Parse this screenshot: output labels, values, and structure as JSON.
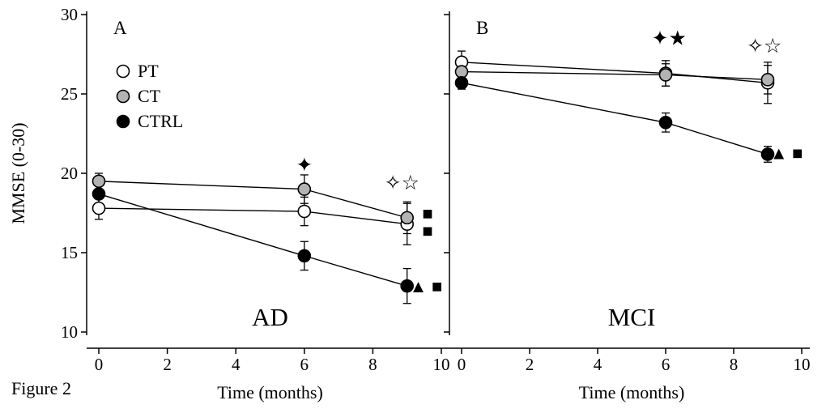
{
  "figure_label": "Figure 2",
  "marker_colors": {
    "open": "#ffffff",
    "gray": "#b3b3b3",
    "filled": "#000000"
  },
  "chart_data": [
    {
      "type": "line",
      "panel_label": "A",
      "title": "AD",
      "xlabel": "Time (months)",
      "ylabel": "MMSE (0-30)",
      "xlim": [
        0,
        10
      ],
      "ylim": [
        10,
        30
      ],
      "xticks": [
        0,
        2,
        4,
        6,
        8,
        10
      ],
      "yticks": [
        10,
        15,
        20,
        25,
        30
      ],
      "show_ytick_labels": true,
      "x": [
        0,
        6,
        9
      ],
      "legend": [
        {
          "label": "PT",
          "marker": "open"
        },
        {
          "label": "CT",
          "marker": "gray"
        },
        {
          "label": "CTRL",
          "marker": "filled"
        }
      ],
      "series": [
        {
          "name": "PT",
          "marker": "open",
          "values": [
            17.8,
            17.6,
            16.8
          ],
          "errors": [
            0.7,
            0.9,
            1.3
          ]
        },
        {
          "name": "CT",
          "marker": "gray",
          "values": [
            19.5,
            19.0,
            17.2
          ],
          "errors": [
            0.5,
            0.9,
            1.0
          ]
        },
        {
          "name": "CTRL",
          "marker": "filled",
          "values": [
            18.7,
            14.8,
            12.9
          ],
          "errors": [
            0.6,
            0.9,
            1.1
          ]
        }
      ],
      "annotations": [
        {
          "glyph": "✦",
          "x": 6.0,
          "y": 20.5
        },
        {
          "glyph": "✧☆",
          "x": 8.85,
          "y": 19.4
        },
        {
          "glyph": "■",
          "x": 9.6,
          "y": 17.5,
          "size": 22
        },
        {
          "glyph": "■",
          "x": 9.6,
          "y": 16.4,
          "size": 22
        },
        {
          "glyph": "▲ ■",
          "x": 9.55,
          "y": 12.9,
          "size": 22
        }
      ]
    },
    {
      "type": "line",
      "panel_label": "B",
      "title": "MCI",
      "xlabel": "Time (months)",
      "ylabel": "",
      "xlim": [
        0,
        10
      ],
      "ylim": [
        10,
        30
      ],
      "xticks": [
        0,
        2,
        4,
        6,
        8,
        10
      ],
      "yticks": [
        10,
        15,
        20,
        25,
        30
      ],
      "show_ytick_labels": false,
      "x": [
        0,
        6,
        9
      ],
      "series": [
        {
          "name": "PT",
          "marker": "open",
          "values": [
            27.0,
            26.3,
            25.7
          ],
          "errors": [
            0.7,
            0.8,
            1.3
          ]
        },
        {
          "name": "CT",
          "marker": "gray",
          "values": [
            26.4,
            26.2,
            25.9
          ],
          "errors": [
            0.5,
            0.7,
            0.9
          ]
        },
        {
          "name": "CTRL",
          "marker": "filled",
          "values": [
            25.7,
            23.2,
            21.2
          ],
          "errors": [
            0.4,
            0.6,
            0.5
          ]
        }
      ],
      "annotations": [
        {
          "glyph": "✦★",
          "x": 6.1,
          "y": 28.5
        },
        {
          "glyph": "✧☆",
          "x": 8.9,
          "y": 28.0
        },
        {
          "glyph": "▲ ■",
          "x": 9.55,
          "y": 21.3,
          "size": 22
        }
      ]
    }
  ]
}
